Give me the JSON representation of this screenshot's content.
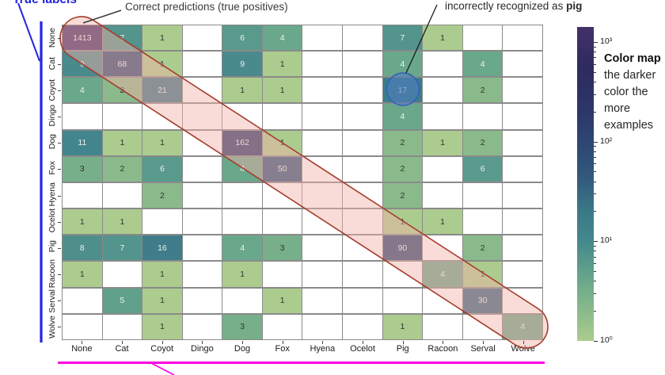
{
  "annotations": {
    "true_labels": "True labels",
    "correct_predictions": "Correct predictions (true positives)",
    "pig_note_prefix": "incorrectly recognized as ",
    "pig_note_bold": "pig",
    "colormap_title": "Color map",
    "colormap_body": "the darker color the more examples"
  },
  "colors": {
    "annotation_blue": "#2424e0",
    "leader_dark": "#3a3a3a",
    "ellipse_stroke": "#a63d2e",
    "ellipse_fill": "rgba(242,178,168,0.45)",
    "circle_stroke": "#3060bd",
    "circle_fill": "rgba(80,125,190,0.6)",
    "magenta_line": "#ff00e0",
    "grid_line": "#8a8a8a",
    "value_text_light": "#edf2ed",
    "value_text_dark": "#333333"
  },
  "chart_data": {
    "type": "heatmap",
    "x_labels": [
      "None",
      "Cat",
      "Coyot",
      "Dingo",
      "Dog",
      "Fox",
      "Hyena",
      "Ocelot",
      "Pig",
      "Racoon",
      "Serval",
      "Wolve"
    ],
    "y_labels": [
      "None",
      "Cat",
      "Coyot",
      "Dingo",
      "Dog",
      "Fox",
      "Hyena",
      "Ocelot",
      "Pig",
      "Racoon",
      "Serval",
      "Wolve"
    ],
    "matrix": [
      [
        1413,
        7,
        1,
        null,
        6,
        4,
        null,
        null,
        7,
        1,
        null,
        null
      ],
      [
        9,
        68,
        1,
        null,
        9,
        1,
        null,
        null,
        4,
        null,
        4,
        null
      ],
      [
        4,
        2,
        21,
        null,
        1,
        1,
        null,
        null,
        17,
        null,
        2,
        null
      ],
      [
        null,
        null,
        null,
        null,
        null,
        null,
        null,
        null,
        4,
        null,
        null,
        null
      ],
      [
        11,
        1,
        1,
        null,
        162,
        1,
        null,
        null,
        2,
        1,
        2,
        null
      ],
      [
        3,
        2,
        6,
        null,
        4,
        50,
        null,
        null,
        2,
        null,
        6,
        null
      ],
      [
        null,
        null,
        2,
        null,
        null,
        null,
        null,
        null,
        2,
        null,
        null,
        null
      ],
      [
        1,
        1,
        null,
        null,
        null,
        null,
        null,
        null,
        1,
        1,
        null,
        null
      ],
      [
        8,
        7,
        16,
        null,
        4,
        3,
        null,
        null,
        90,
        null,
        2,
        null
      ],
      [
        1,
        null,
        1,
        null,
        1,
        null,
        null,
        null,
        null,
        4,
        1,
        null
      ],
      [
        null,
        5,
        1,
        null,
        null,
        1,
        null,
        null,
        null,
        null,
        30,
        null
      ],
      [
        null,
        null,
        1,
        null,
        3,
        null,
        null,
        null,
        1,
        null,
        null,
        4
      ]
    ],
    "scale": "log",
    "vmin": 1,
    "vmax": 1413,
    "highlighted_cell": {
      "row": "Coyot",
      "col": "Pig",
      "value": 17
    },
    "colorbar": {
      "major_ticks": [
        {
          "value": 1000,
          "label": "10³"
        },
        {
          "value": 100,
          "label": "10²"
        },
        {
          "value": 10,
          "label": "10¹"
        },
        {
          "value": 1,
          "label": "10⁰"
        }
      ],
      "minor_tick_values": [
        2,
        3,
        4,
        5,
        6,
        7,
        8,
        9,
        20,
        30,
        40,
        50,
        60,
        70,
        80,
        90,
        200,
        300,
        400,
        500,
        600,
        700,
        800,
        900
      ]
    },
    "colormap_stops": [
      [
        0.0,
        "#abcc8e"
      ],
      [
        0.09,
        "#8cbb8b"
      ],
      [
        0.19,
        "#6aa88b"
      ],
      [
        0.32,
        "#44878d"
      ],
      [
        0.42,
        "#3a7787"
      ],
      [
        0.52,
        "#32597c"
      ],
      [
        0.63,
        "#2e4673"
      ],
      [
        0.74,
        "#2c3569"
      ],
      [
        0.87,
        "#2e2b5e"
      ],
      [
        1.0,
        "#443069"
      ]
    ]
  }
}
